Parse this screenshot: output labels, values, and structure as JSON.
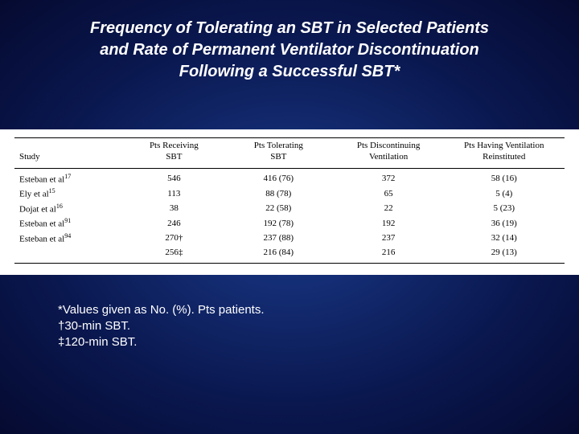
{
  "title_line1": "Frequency of Tolerating an SBT in Selected Patients",
  "title_line2": "and Rate of Permanent Ventilator Discontinuation",
  "title_line3": "Following a Successful SBT*",
  "table": {
    "columns": [
      {
        "l1": "",
        "l2": "Study"
      },
      {
        "l1": "Pts Receiving",
        "l2": "SBT"
      },
      {
        "l1": "Pts Tolerating",
        "l2": "SBT"
      },
      {
        "l1": "Pts Discontinuing",
        "l2": "Ventilation"
      },
      {
        "l1": "Pts Having Ventilation",
        "l2": "Reinstituted"
      }
    ],
    "rows": [
      {
        "study": "Esteban et al",
        "sup": "17",
        "receiving": "546",
        "tolerating": "416 (76)",
        "discontinuing": "372",
        "reinstituted": "58 (16)"
      },
      {
        "study": "Ely et al",
        "sup": "15",
        "receiving": "113",
        "tolerating": "88 (78)",
        "discontinuing": "65",
        "reinstituted": "5 (4)"
      },
      {
        "study": "Dojat et al",
        "sup": "16",
        "receiving": "38",
        "tolerating": "22 (58)",
        "discontinuing": "22",
        "reinstituted": "5 (23)"
      },
      {
        "study": "Esteban et al",
        "sup": "91",
        "receiving": "246",
        "tolerating": "192 (78)",
        "discontinuing": "192",
        "reinstituted": "36 (19)"
      },
      {
        "study": "Esteban et al",
        "sup": "94",
        "receiving": "270†",
        "tolerating": "237 (88)",
        "discontinuing": "237",
        "reinstituted": "32 (14)"
      },
      {
        "study": "",
        "sup": "",
        "receiving": "256‡",
        "tolerating": "216 (84)",
        "discontinuing": "216",
        "reinstituted": "29 (13)"
      }
    ],
    "background_color": "#ffffff",
    "text_color": "#000000",
    "border_color": "#000000",
    "header_fontsize": 11,
    "cell_fontsize": 11
  },
  "footnotes": {
    "f1": "*Values given as No. (%). Pts  patients.",
    "f2": "†30-min SBT.",
    "f3": "‡120-min SBT."
  },
  "colors": {
    "slide_bg_center": "#1a3a8a",
    "slide_bg_edge": "#050a30",
    "title_text": "#ffffff",
    "footnote_text": "#ffffff"
  }
}
